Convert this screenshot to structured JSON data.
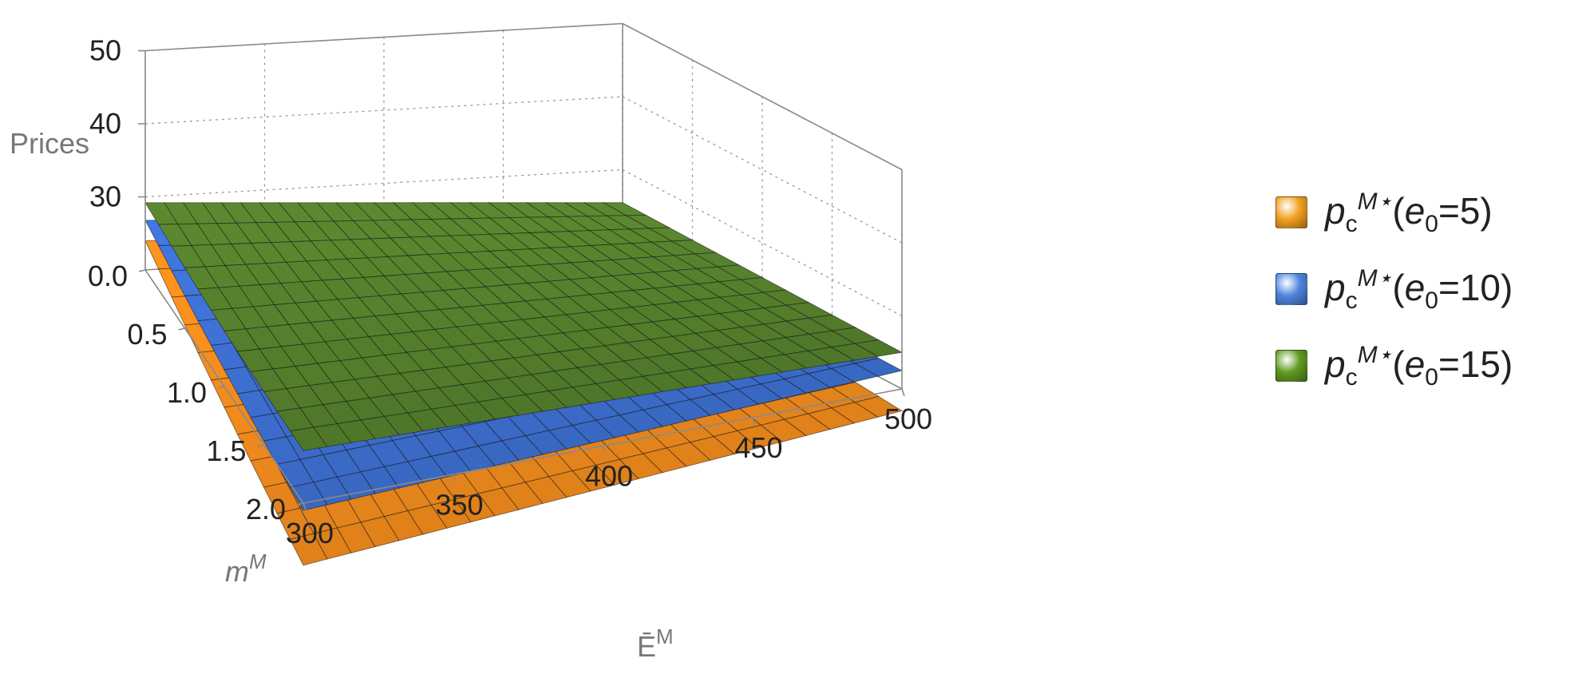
{
  "chart_data": {
    "type": "surface3d",
    "zlabel": "Prices",
    "xlabel": "m",
    "xlabel_sup": "M",
    "ylabel": "Ē",
    "ylabel_sup": "M",
    "z_ticks": [
      "30",
      "40",
      "50"
    ],
    "x_ticks": [
      "0.0",
      "0.5",
      "1.0",
      "1.5",
      "2.0"
    ],
    "y_ticks": [
      "300",
      "350",
      "400",
      "450",
      "500"
    ],
    "zlim": [
      20,
      50
    ],
    "xlim": [
      0,
      2
    ],
    "ylim": [
      300,
      500
    ],
    "series": [
      {
        "name": "p_c^{M*}(e_0=5)",
        "color": "#f08a1c",
        "corners": {
          "m0_E300": 24.0,
          "m2_E300": 11.5,
          "m0_E500": 20.5,
          "m2_E500": 17.0
        }
      },
      {
        "name": "p_c^{M*}(e_0=10)",
        "color": "#3d6fd1",
        "corners": {
          "m0_E300": 26.8,
          "m2_E300": 19.0,
          "m0_E500": 23.0,
          "m2_E500": 22.5
        }
      },
      {
        "name": "p_c^{M*}(e_0=15)",
        "color": "#557f2c",
        "corners": {
          "m0_E300": 29.2,
          "m2_E300": 27.2,
          "m0_E500": 25.5,
          "m2_E500": 25.0
        }
      }
    ]
  },
  "legend": [
    {
      "p": "p",
      "sub1": "c",
      "sup": "M⋆",
      "open": "(",
      "e": "e",
      "sub2": "0",
      "val": "=5)",
      "color": "#f2a020"
    },
    {
      "p": "p",
      "sub1": "c",
      "sup": "M⋆",
      "open": "(",
      "e": "e",
      "sub2": "0",
      "val": "=10)",
      "color": "#4f86e0"
    },
    {
      "p": "p",
      "sub1": "c",
      "sup": "M⋆",
      "open": "(",
      "e": "e",
      "sub2": "0",
      "val": "=15)",
      "color": "#5f9a22"
    }
  ]
}
